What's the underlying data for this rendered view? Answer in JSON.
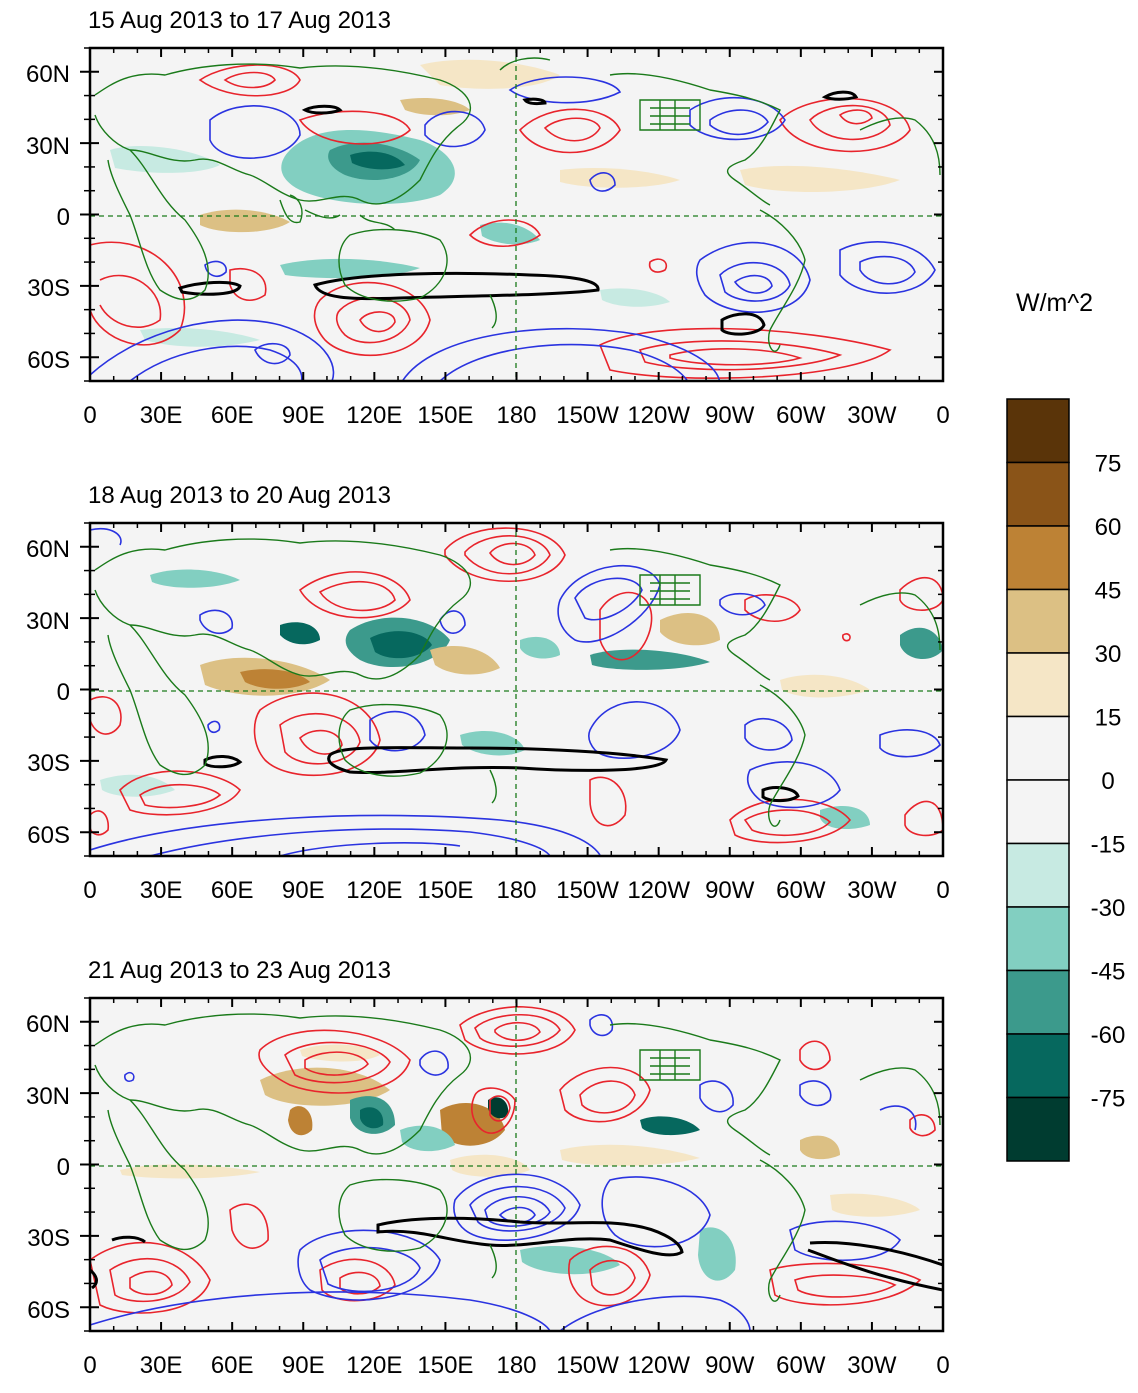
{
  "panels": [
    {
      "title": "15 Aug 2013 to 17 Aug 2013"
    },
    {
      "title": "18 Aug 2013 to 20 Aug 2013"
    },
    {
      "title": "21 Aug 2013 to 23 Aug 2013"
    }
  ],
  "axes": {
    "lon_labels": [
      "0",
      "30E",
      "60E",
      "90E",
      "120E",
      "150E",
      "180",
      "150W",
      "120W",
      "90W",
      "60W",
      "30W",
      "0"
    ],
    "lat_labels": [
      "60N",
      "30N",
      "0",
      "30S",
      "60S"
    ],
    "lon_range": [
      0,
      360
    ],
    "lat_range": [
      -70,
      70
    ],
    "lon_ticks": [
      0,
      30,
      60,
      90,
      120,
      150,
      180,
      210,
      240,
      270,
      300,
      330,
      360
    ],
    "lat_ticks": [
      60,
      30,
      0,
      -30,
      -60
    ]
  },
  "colorbar": {
    "units": "W/m^2",
    "labels": [
      "75",
      "60",
      "45",
      "30",
      "15",
      "0",
      "-15",
      "-30",
      "-45",
      "-60",
      "-75"
    ],
    "colors": [
      "#5a3409",
      "#8a5418",
      "#bd8235",
      "#dcc084",
      "#f5e6c6",
      "#f4f4f4",
      "#f4f4f4",
      "#c7eae2",
      "#82cfc1",
      "#3c9a8c",
      "#06685e",
      "#003c30"
    ]
  },
  "colors": {
    "coast": "#1a7a1a",
    "positive_contour": "#e8242c",
    "negative_contour": "#2a33e0",
    "thick_contour": "#000000",
    "neg_shade_light": "#c7eae2",
    "neg_shade_mid": "#82cfc1",
    "neg_shade_dark": "#3c9a8c",
    "neg_shade_darker": "#06685e",
    "pos_shade_light": "#f5e6c6",
    "pos_shade_mid": "#dcc084",
    "pos_shade_dark": "#bd8235"
  }
}
